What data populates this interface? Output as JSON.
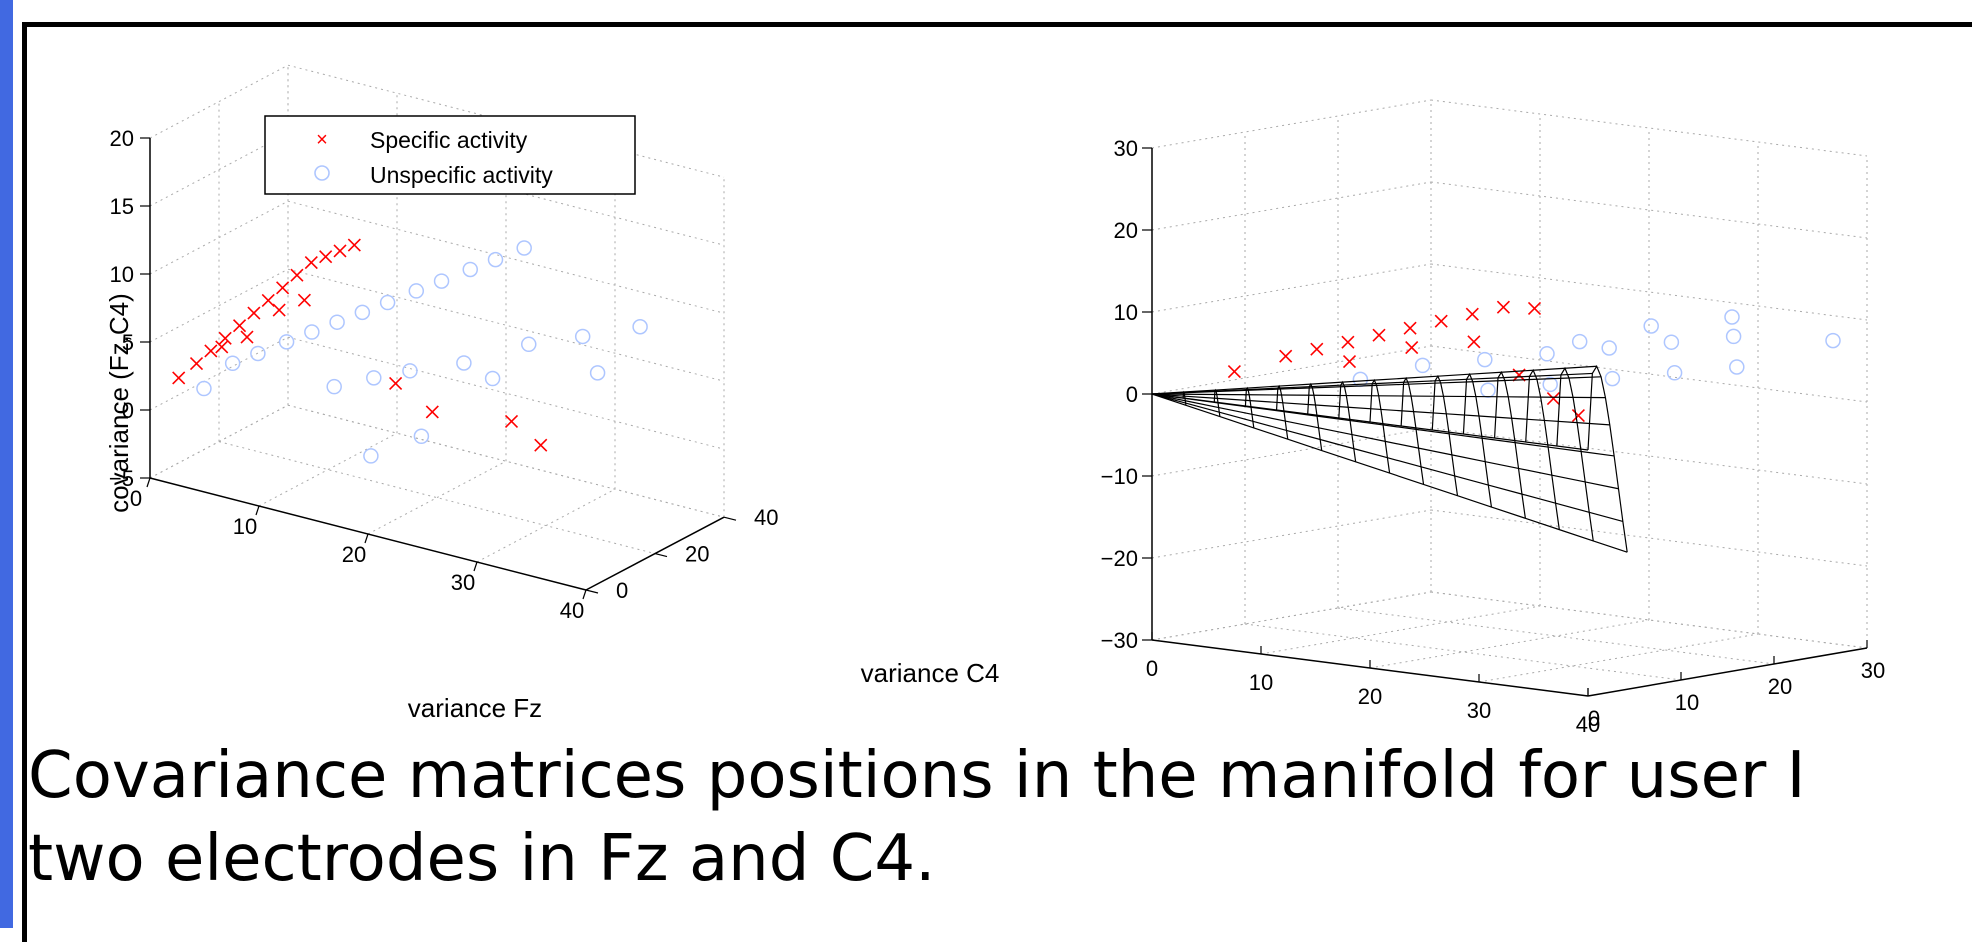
{
  "caption": {
    "line1": "Covariance matrices positions in the manifold for user I",
    "line2": "two electrodes in Fz and C4."
  },
  "colors": {
    "specific": "#ff0000",
    "unspecific": "#aec6ff",
    "grid": "#aaaaaa",
    "frame_left": "#4169e1"
  },
  "chart_data": [
    {
      "type": "scatter",
      "projection": "3d",
      "title": "",
      "xlabel": "variance Fz",
      "ylabel": "variance C4",
      "zlabel": "covariance (Fz,C4)",
      "xlim": [
        0,
        40
      ],
      "ylim": [
        0,
        40
      ],
      "zlim": [
        -5,
        20
      ],
      "x_ticks": [
        "0",
        "10",
        "20",
        "30",
        "40"
      ],
      "y_ticks": [
        "0",
        "20",
        "40"
      ],
      "z_ticks": [
        "−5",
        "0",
        "5",
        "10",
        "15",
        "20"
      ],
      "grid": true,
      "legend": {
        "position": "top-left",
        "entries": [
          "Specific activity",
          "Unspecific activity"
        ]
      },
      "series": [
        {
          "name": "Specific activity",
          "marker": "x",
          "color": "#ff0000",
          "points": [
            [
              2,
              2,
              2.5
            ],
            [
              3,
              4,
              3.5
            ],
            [
              4,
              5,
              4.5
            ],
            [
              5,
              6,
              5.5
            ],
            [
              6,
              7,
              6.5
            ],
            [
              7,
              8,
              7.5
            ],
            [
              8,
              9,
              8.5
            ],
            [
              9,
              10,
              9.5
            ],
            [
              10,
              11,
              10.5
            ],
            [
              11,
              12,
              11.5
            ],
            [
              12,
              13,
              12.0
            ],
            [
              13,
              14,
              12.5
            ],
            [
              5,
              5,
              5.0
            ],
            [
              7,
              6,
              6.0
            ],
            [
              9,
              9,
              8.0
            ],
            [
              11,
              10,
              9.0
            ],
            [
              14,
              15,
              13.0
            ],
            [
              20,
              8,
              5.0
            ],
            [
              24,
              6,
              4.0
            ],
            [
              30,
              10,
              4.0
            ],
            [
              33,
              9,
              3.0
            ]
          ]
        },
        {
          "name": "Unspecific activity",
          "marker": "o",
          "color": "#aec6ff",
          "points": [
            [
              4,
              3,
              2.0
            ],
            [
              6,
              5,
              4.0
            ],
            [
              8,
              6,
              5.0
            ],
            [
              10,
              8,
              6.0
            ],
            [
              12,
              9,
              7.0
            ],
            [
              14,
              10,
              8.0
            ],
            [
              16,
              11,
              9.0
            ],
            [
              18,
              12,
              10.0
            ],
            [
              20,
              14,
              11.0
            ],
            [
              22,
              15,
              12.0
            ],
            [
              24,
              17,
              13.0
            ],
            [
              26,
              18,
              14.0
            ],
            [
              28,
              20,
              15.0
            ],
            [
              15,
              6,
              4.0
            ],
            [
              18,
              8,
              5.0
            ],
            [
              21,
              9,
              6.0
            ],
            [
              25,
              12,
              7.0
            ],
            [
              30,
              15,
              9.0
            ],
            [
              34,
              18,
              10.0
            ],
            [
              38,
              22,
              11.0
            ],
            [
              36,
              16,
              8.0
            ],
            [
              27,
              14,
              6.0
            ],
            [
              23,
              6,
              2.0
            ],
            [
              19,
              4,
              0.0
            ]
          ]
        }
      ]
    },
    {
      "type": "scatter",
      "projection": "3d",
      "surface": "wireframe cone (manifold boundary)",
      "title": "",
      "xlabel": "",
      "ylabel": "",
      "zlabel": "",
      "xlim": [
        0,
        40
      ],
      "ylim": [
        0,
        30
      ],
      "zlim": [
        -30,
        30
      ],
      "x_ticks": [
        "0",
        "10",
        "20",
        "30",
        "40"
      ],
      "y_ticks": [
        "0",
        "10",
        "20",
        "30"
      ],
      "z_ticks": [
        "30",
        "20",
        "10",
        "0",
        "−10",
        "−20",
        "−30"
      ],
      "grid": true,
      "series": [
        {
          "name": "Specific activity",
          "marker": "x",
          "color": "#ff0000",
          "points": [
            [
              5,
              3,
              3
            ],
            [
              8,
              5,
              5
            ],
            [
              10,
              6,
              6
            ],
            [
              12,
              7,
              7
            ],
            [
              14,
              8,
              8
            ],
            [
              16,
              9,
              9
            ],
            [
              18,
              10,
              10
            ],
            [
              20,
              11,
              11
            ],
            [
              22,
              12,
              12
            ],
            [
              24,
              13,
              12
            ],
            [
              13,
              6,
              5
            ],
            [
              17,
              8,
              7
            ],
            [
              21,
              10,
              8
            ],
            [
              26,
              9,
              5
            ],
            [
              30,
              8,
              3
            ],
            [
              34,
              6,
              2
            ]
          ]
        },
        {
          "name": "Unspecific activity",
          "marker": "o",
          "color": "#aec6ff",
          "points": [
            [
              14,
              6,
              3
            ],
            [
              18,
              8,
              5
            ],
            [
              22,
              10,
              6
            ],
            [
              26,
              12,
              7
            ],
            [
              30,
              14,
              8
            ],
            [
              34,
              16,
              9
            ],
            [
              38,
              18,
              10
            ],
            [
              24,
              8,
              3
            ],
            [
              28,
              10,
              4
            ],
            [
              32,
              12,
              5
            ],
            [
              36,
              14,
              6
            ],
            [
              40,
              16,
              7
            ],
            [
              29,
              12,
              9
            ],
            [
              33,
              15,
              11
            ],
            [
              37,
              19,
              12
            ],
            [
              42,
              24,
              9
            ]
          ]
        }
      ]
    }
  ]
}
